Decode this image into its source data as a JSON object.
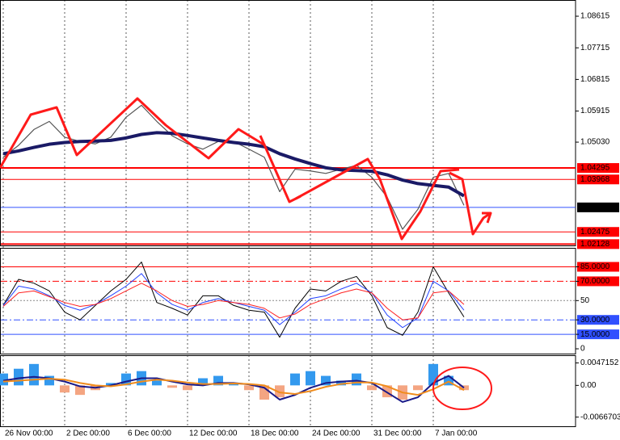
{
  "chart_data": [
    {
      "type": "line",
      "ylim": [
        1.0209,
        1.0903
      ],
      "yticks": [
        1.08615,
        1.07715,
        1.06815,
        1.05915,
        {
          "value": 1.0503,
          "label": "1.05030"
        }
      ],
      "levels": [
        {
          "value": 1.04295,
          "color": "#ff0000",
          "width": 2,
          "dash": "none",
          "label_color": "#ff0000"
        },
        {
          "value": 1.03968,
          "color": "#ff0000",
          "width": 1,
          "dash": "none",
          "label_color": "#ff0000"
        },
        {
          "value": 1.03173,
          "color": "#3050ff",
          "width": 1,
          "dash": "none",
          "label_color": "#000000"
        },
        {
          "value": 1.02475,
          "color": "#ff0000",
          "width": 1,
          "dash": "none",
          "label_color": "#ff0000"
        },
        {
          "value": 1.02128,
          "color": "#ff0000",
          "width": 2,
          "dash": "none",
          "label_color": "#ff0000"
        }
      ],
      "series": [
        {
          "color": "#555555",
          "line_width": 1.2,
          "values": [
            1.046,
            1.0494,
            1.0539,
            1.0562,
            1.0517,
            1.0505,
            1.0498,
            1.0517,
            1.0574,
            1.0608,
            1.0562,
            1.0521,
            1.0498,
            1.0483,
            1.0505,
            1.0505,
            1.0483,
            1.046,
            1.0362,
            1.0426,
            1.0421,
            1.0414,
            1.0426,
            1.0437,
            1.0403,
            1.0346,
            1.0255,
            1.0312,
            1.0403,
            1.0414,
            1.0323
          ]
        },
        {
          "color": "#1a1a66",
          "line_width": 4,
          "values": [
            1.047,
            1.0478,
            1.0488,
            1.0497,
            1.0502,
            1.0505,
            1.0506,
            1.0508,
            1.0515,
            1.0525,
            1.053,
            1.0528,
            1.0522,
            1.0515,
            1.0508,
            1.0502,
            1.0497,
            1.049,
            1.047,
            1.0455,
            1.0442,
            1.043,
            1.0424,
            1.0422,
            1.042,
            1.041,
            1.0395,
            1.0385,
            1.038,
            1.0375,
            1.035
          ]
        }
      ]
    },
    {
      "type": "line",
      "ylim": [
        -5,
        103
      ],
      "yticks": [
        {
          "value": 85,
          "label": "85.0000"
        },
        {
          "value": 70,
          "label": "70.0000"
        },
        50,
        {
          "value": 30,
          "label": "30.0000"
        },
        {
          "value": 15,
          "label": "15.0000"
        },
        0
      ],
      "levels": [
        {
          "value": 85,
          "color": "#ff0000",
          "width": 1,
          "dash": "none",
          "label_color": "#ff0000"
        },
        {
          "value": 70,
          "color": "#ff0000",
          "width": 1,
          "dash": "8 3 2 3",
          "label_color": "#ff0000"
        },
        {
          "value": 50,
          "color": "#888888",
          "width": 1,
          "dash": "2 2"
        },
        {
          "value": 30,
          "color": "#3050ff",
          "width": 1,
          "dash": "8 3 2 3",
          "label_color": "#3050ff"
        },
        {
          "value": 15,
          "color": "#3050ff",
          "width": 1,
          "dash": "none",
          "label_color": "#3050ff"
        }
      ],
      "series": [
        {
          "color": "#000000",
          "line_width": 1,
          "values": [
            45,
            72,
            68,
            60,
            38,
            30,
            45,
            60,
            72,
            90,
            48,
            42,
            35,
            55,
            55,
            45,
            40,
            38,
            12,
            42,
            62,
            60,
            70,
            75,
            55,
            22,
            14,
            38,
            85,
            58,
            33
          ]
        },
        {
          "color": "#2040ff",
          "line_width": 1,
          "values": [
            45,
            65,
            62,
            55,
            45,
            40,
            46,
            55,
            65,
            78,
            58,
            46,
            40,
            48,
            52,
            48,
            44,
            40,
            25,
            38,
            52,
            55,
            62,
            68,
            58,
            35,
            22,
            32,
            70,
            60,
            40
          ]
        },
        {
          "color": "#ff2020",
          "line_width": 1,
          "values": [
            44,
            58,
            60,
            54,
            48,
            44,
            46,
            52,
            60,
            68,
            60,
            50,
            44,
            46,
            50,
            48,
            46,
            42,
            32,
            36,
            46,
            52,
            58,
            62,
            58,
            42,
            30,
            32,
            58,
            60,
            46
          ]
        }
      ]
    },
    {
      "type": "bar",
      "ylim": [
        -0.0086,
        0.006
      ],
      "yticks": [
        0.0047152,
        {
          "value": 0,
          "label": "0.00"
        },
        -0.0066703
      ],
      "color": "#3399ee",
      "negative_color": "#f4a582",
      "categories": [
        "26 Nov 00:00",
        null,
        null,
        null,
        "2 Dec 00:00",
        null,
        null,
        null,
        "6 Dec 00:00",
        null,
        null,
        null,
        "12 Dec 00:00",
        null,
        null,
        null,
        "18 Dec 00:00",
        null,
        null,
        null,
        "24 Dec 00:00",
        null,
        null,
        null,
        "31 Dec 00:00",
        null,
        null,
        null,
        "7 Jan 00:00",
        null,
        null
      ],
      "values": [
        0.0025,
        0.0035,
        0.0045,
        0.002,
        -0.0015,
        -0.002,
        -0.001,
        0.0005,
        0.0025,
        0.003,
        0.001,
        -0.0005,
        -0.001,
        0.0015,
        0.002,
        0.0005,
        -0.001,
        -0.003,
        -0.0025,
        0.0025,
        0.003,
        0.002,
        0.001,
        0.0025,
        -0.001,
        -0.0025,
        -0.003,
        -0.001,
        0.0045,
        0.002,
        -0.001
      ],
      "series": [
        {
          "color": "#1a1a88",
          "line_width": 2,
          "values": [
            0.001,
            0.0015,
            0.0018,
            0.0015,
            0.0008,
            -0.0002,
            -0.0005,
            0,
            0.0008,
            0.0015,
            0.0015,
            0.0008,
            0.0002,
            0,
            0.0005,
            0.0005,
            0.0002,
            -0.0005,
            -0.003,
            -0.002,
            -0.0005,
            0.0005,
            0.0008,
            0.001,
            0.0005,
            -0.0015,
            -0.0035,
            -0.0025,
            0.0005,
            0.002,
            -0.0005
          ]
        },
        {
          "color": "#f08c1c",
          "line_width": 2,
          "values": [
            0.0008,
            0.001,
            0.0012,
            0.0014,
            0.0012,
            0.0005,
            0,
            -0.0002,
            0.0002,
            0.0008,
            0.0012,
            0.001,
            0.0006,
            0.0003,
            0.0003,
            0.0004,
            0.0003,
            0,
            -0.0015,
            -0.0018,
            -0.0012,
            -0.0003,
            0.0003,
            0.0006,
            0.0006,
            -0.0002,
            -0.0015,
            -0.002,
            -0.0008,
            0.0008,
            -0.001
          ]
        }
      ]
    }
  ]
}
